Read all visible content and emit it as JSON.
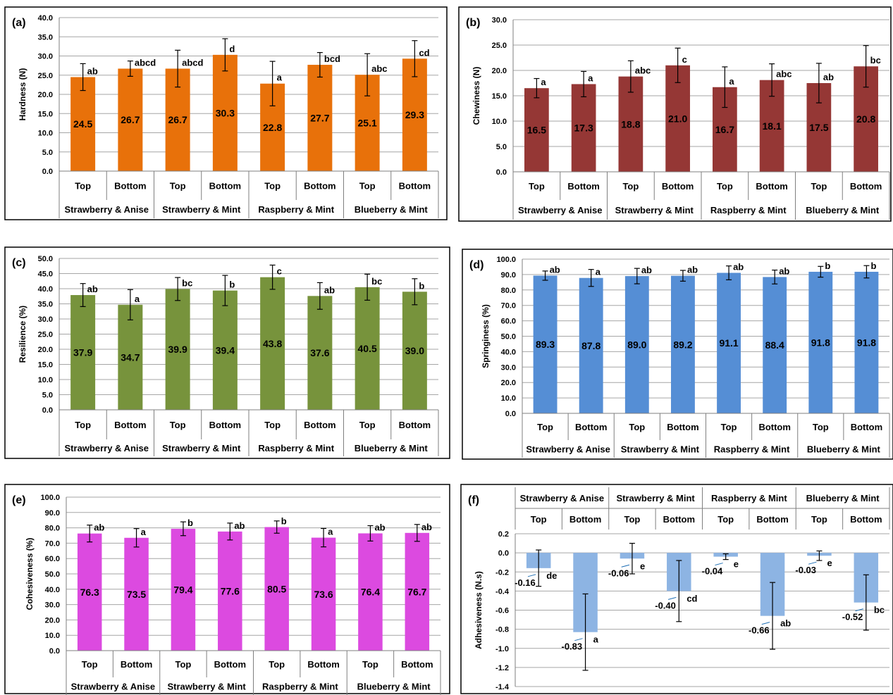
{
  "chart_data": [
    {
      "type": "bar",
      "panel_label": "(a)",
      "ylabel": "Hardness (N)",
      "ylim": [
        0,
        40
      ],
      "ytick_step": 5,
      "y_decimals": 1,
      "bar_color": "#e8710a",
      "value_label_color": "#ffffff",
      "categories": [
        "Top",
        "Bottom",
        "Top",
        "Bottom",
        "Top",
        "Bottom",
        "Top",
        "Bottom"
      ],
      "groups": [
        "Strawberry & Anise",
        "Strawberry & Mint",
        "Raspberry & Mint",
        "Blueberry & Mint"
      ],
      "values": [
        24.5,
        26.7,
        26.7,
        30.3,
        22.8,
        27.7,
        25.1,
        29.3
      ],
      "value_labels": [
        "24.5",
        "26.7",
        "26.7",
        "30.3",
        "22.8",
        "27.7",
        "25.1",
        "29.3"
      ],
      "errors": [
        3.5,
        2.0,
        4.8,
        4.2,
        5.8,
        3.2,
        5.5,
        4.7
      ],
      "letters": [
        "ab",
        "abcd",
        "abcd",
        "d",
        "a",
        "bcd",
        "abc",
        "cd"
      ]
    },
    {
      "type": "bar",
      "panel_label": "(b)",
      "ylabel": "Chewiness (N)",
      "ylim": [
        0,
        30
      ],
      "ytick_step": 5,
      "y_decimals": 1,
      "bar_color": "#953735",
      "value_label_color": "#ffffff",
      "categories": [
        "Top",
        "Bottom",
        "Top",
        "Bottom",
        "Top",
        "Bottom",
        "Top",
        "Bottom"
      ],
      "groups": [
        "Strawberry & Anise",
        "Strawberry & Mint",
        "Raspberry & Mint",
        "Blueberry & Mint"
      ],
      "values": [
        16.5,
        17.3,
        18.8,
        21.0,
        16.7,
        18.1,
        17.5,
        20.8
      ],
      "value_labels": [
        "16.5",
        "17.3",
        "18.8",
        "21.0",
        "16.7",
        "18.1",
        "17.5",
        "20.8"
      ],
      "errors": [
        1.9,
        2.5,
        3.1,
        3.4,
        4.0,
        3.2,
        3.9,
        4.1
      ],
      "letters": [
        "a",
        "a",
        "abc",
        "c",
        "a",
        "abc",
        "ab",
        "bc"
      ]
    },
    {
      "type": "bar",
      "panel_label": "(c)",
      "ylabel": "Resilience (%)",
      "ylim": [
        0,
        50
      ],
      "ytick_step": 5,
      "y_decimals": 1,
      "bar_color": "#77933c",
      "value_label_color": "#ffffff",
      "categories": [
        "Top",
        "Bottom",
        "Top",
        "Bottom",
        "Top",
        "Bottom",
        "Top",
        "Bottom"
      ],
      "groups": [
        "Strawberry & Anise",
        "Strawberry & Mint",
        "Raspberry & Mint",
        "Blueberry & Mint"
      ],
      "values": [
        37.9,
        34.7,
        39.9,
        39.4,
        43.8,
        37.6,
        40.5,
        39.0
      ],
      "value_labels": [
        "37.9",
        "34.7",
        "39.9",
        "39.4",
        "43.8",
        "37.6",
        "40.5",
        "39.0"
      ],
      "errors": [
        3.8,
        5.0,
        3.8,
        5.0,
        4.0,
        4.4,
        4.3,
        4.3
      ],
      "letters": [
        "ab",
        "a",
        "bc",
        "b",
        "c",
        "ab",
        "bc",
        "b"
      ]
    },
    {
      "type": "bar",
      "panel_label": "(d)",
      "ylabel": "Springiness (%)",
      "ylim": [
        0,
        100
      ],
      "ytick_step": 10,
      "y_decimals": 1,
      "bar_color": "#558ed5",
      "value_label_color": "#ffffff",
      "categories": [
        "Top",
        "Bottom",
        "Top",
        "Bottom",
        "Top",
        "Bottom",
        "Top",
        "Bottom"
      ],
      "groups": [
        "Strawberry & Anise",
        "Strawberry & Mint",
        "Raspberry & Mint",
        "Blueberry & Mint"
      ],
      "values": [
        89.3,
        87.8,
        89.0,
        89.2,
        91.1,
        88.4,
        91.8,
        91.8
      ],
      "value_labels": [
        "89.3",
        "87.8",
        "89.0",
        "89.2",
        "91.1",
        "88.4",
        "91.8",
        "91.8"
      ],
      "errors": [
        3.0,
        5.5,
        5.0,
        3.5,
        4.5,
        4.5,
        3.5,
        4.0
      ],
      "letters": [
        "ab",
        "a",
        "ab",
        "ab",
        "ab",
        "ab",
        "b",
        "b"
      ]
    },
    {
      "type": "bar",
      "panel_label": "(e)",
      "ylabel": "Cohesiveness (%)",
      "ylim": [
        0,
        100
      ],
      "ytick_step": 10,
      "y_decimals": 1,
      "bar_color": "#dc4ae0",
      "value_label_color": "#ffffff",
      "categories": [
        "Top",
        "Bottom",
        "Top",
        "Bottom",
        "Top",
        "Bottom",
        "Top",
        "Bottom"
      ],
      "groups": [
        "Strawberry & Anise",
        "Strawberry & Mint",
        "Raspberry & Mint",
        "Blueberry & Mint"
      ],
      "values": [
        76.3,
        73.5,
        79.4,
        77.6,
        80.5,
        73.6,
        76.4,
        76.7
      ],
      "value_labels": [
        "76.3",
        "73.5",
        "79.4",
        "77.6",
        "80.5",
        "73.6",
        "76.4",
        "76.7"
      ],
      "errors": [
        5.5,
        6.0,
        4.5,
        5.5,
        4.0,
        6.0,
        5.0,
        5.5
      ],
      "letters": [
        "ab",
        "a",
        "b",
        "ab",
        "b",
        "a",
        "ab",
        "ab"
      ]
    },
    {
      "type": "bar",
      "panel_label": "(f)",
      "ylabel": "Adhesiveness (N.s)",
      "ylim": [
        -1.4,
        0.2
      ],
      "ytick_step": 0.2,
      "y_decimals": 1,
      "bar_color": "#8db4e3",
      "value_label_color": "#1f6fb5",
      "categories": [
        "Top",
        "Bottom",
        "Top",
        "Bottom",
        "Top",
        "Bottom",
        "Top",
        "Bottom"
      ],
      "groups": [
        "Strawberry & Anise",
        "Strawberry & Mint",
        "Raspberry & Mint",
        "Blueberry & Mint"
      ],
      "values": [
        -0.16,
        -0.83,
        -0.06,
        -0.4,
        -0.04,
        -0.66,
        -0.03,
        -0.52
      ],
      "value_labels": [
        "-0.16",
        "-0.83",
        "-0.06",
        "-0.40",
        "-0.04",
        "-0.66",
        "-0.03",
        "-0.52"
      ],
      "errors": [
        0.19,
        0.4,
        0.16,
        0.32,
        0.03,
        0.35,
        0.05,
        0.29
      ],
      "letters": [
        "de",
        "a",
        "e",
        "cd",
        "e",
        "ab",
        "e",
        "bc"
      ]
    }
  ]
}
